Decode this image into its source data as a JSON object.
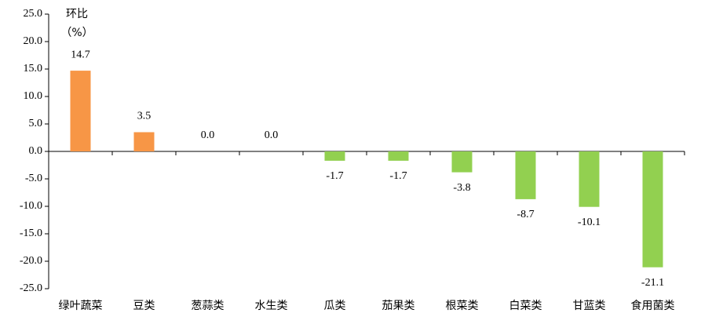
{
  "chart_data": {
    "type": "bar",
    "y_label_lines": [
      "环比",
      "（%）"
    ],
    "categories": [
      "绿叶蔬菜",
      "豆类",
      "葱蒜类",
      "水生类",
      "瓜类",
      "茄果类",
      "根菜类",
      "白菜类",
      "甘蓝类",
      "食用菌类"
    ],
    "values": [
      14.7,
      3.5,
      0.0,
      0.0,
      -1.7,
      -1.7,
      -3.8,
      -8.7,
      -10.1,
      -21.1
    ],
    "value_labels": [
      "14.7",
      "3.5",
      "0.0",
      "0.0",
      "-1.7",
      "-1.7",
      "-3.8",
      "-8.7",
      "-10.1",
      "-21.1"
    ],
    "positive_color": "#f79646",
    "negative_color": "#92d050",
    "ylim": [
      -25,
      25
    ],
    "yticks": [
      {
        "value": -25,
        "label": "-25.0"
      },
      {
        "value": -20,
        "label": "-20.0"
      },
      {
        "value": -15,
        "label": "-15.0"
      },
      {
        "value": -10,
        "label": "-10.0"
      },
      {
        "value": -5,
        "label": "-5.0"
      },
      {
        "value": 0,
        "label": "0.0"
      },
      {
        "value": 5,
        "label": "5.0"
      },
      {
        "value": 10,
        "label": "10.0"
      },
      {
        "value": 15,
        "label": "15.0"
      },
      {
        "value": 20,
        "label": "20.0"
      },
      {
        "value": 25,
        "label": "25.0"
      }
    ]
  }
}
